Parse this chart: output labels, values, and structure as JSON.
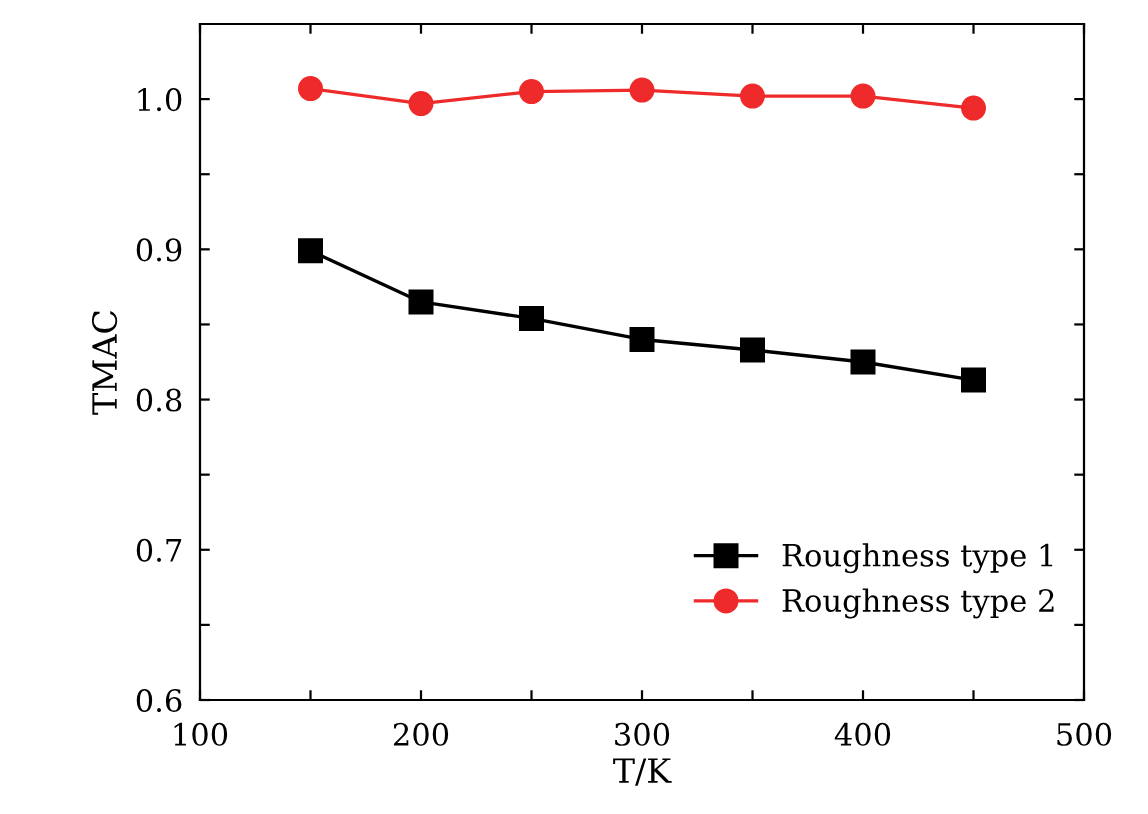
{
  "chart_data": {
    "type": "line",
    "xlabel": "T/K",
    "ylabel": "TMAC",
    "x": [
      150,
      200,
      250,
      300,
      350,
      400,
      450
    ],
    "series": [
      {
        "name": "Roughness type 1",
        "color": "#000000",
        "marker": "square",
        "values": [
          0.899,
          0.865,
          0.854,
          0.84,
          0.833,
          0.825,
          0.813
        ]
      },
      {
        "name": "Roughness type 2",
        "color": "#ee2a2a",
        "marker": "circle",
        "values": [
          1.007,
          0.997,
          1.005,
          1.006,
          1.002,
          1.002,
          0.994
        ]
      }
    ],
    "xlim": [
      100,
      500
    ],
    "xticks": [
      100,
      {
        "value": 150,
        "label": null
      },
      200,
      {
        "value": 250,
        "label": null
      },
      300,
      {
        "value": 350,
        "label": null
      },
      400,
      {
        "value": 450,
        "label": null
      },
      500
    ],
    "ylim": [
      0.6,
      1.05
    ],
    "yticks": [
      0.6,
      {
        "value": 0.65,
        "label": null
      },
      0.7,
      {
        "value": 0.75,
        "label": null
      },
      0.8,
      {
        "value": 0.85,
        "label": null
      },
      0.9,
      {
        "value": 0.95,
        "label": null
      },
      {
        "value": 1.0,
        "label": "1.0"
      }
    ],
    "grid": false,
    "legend": "bottom right",
    "line_style": "solid"
  }
}
